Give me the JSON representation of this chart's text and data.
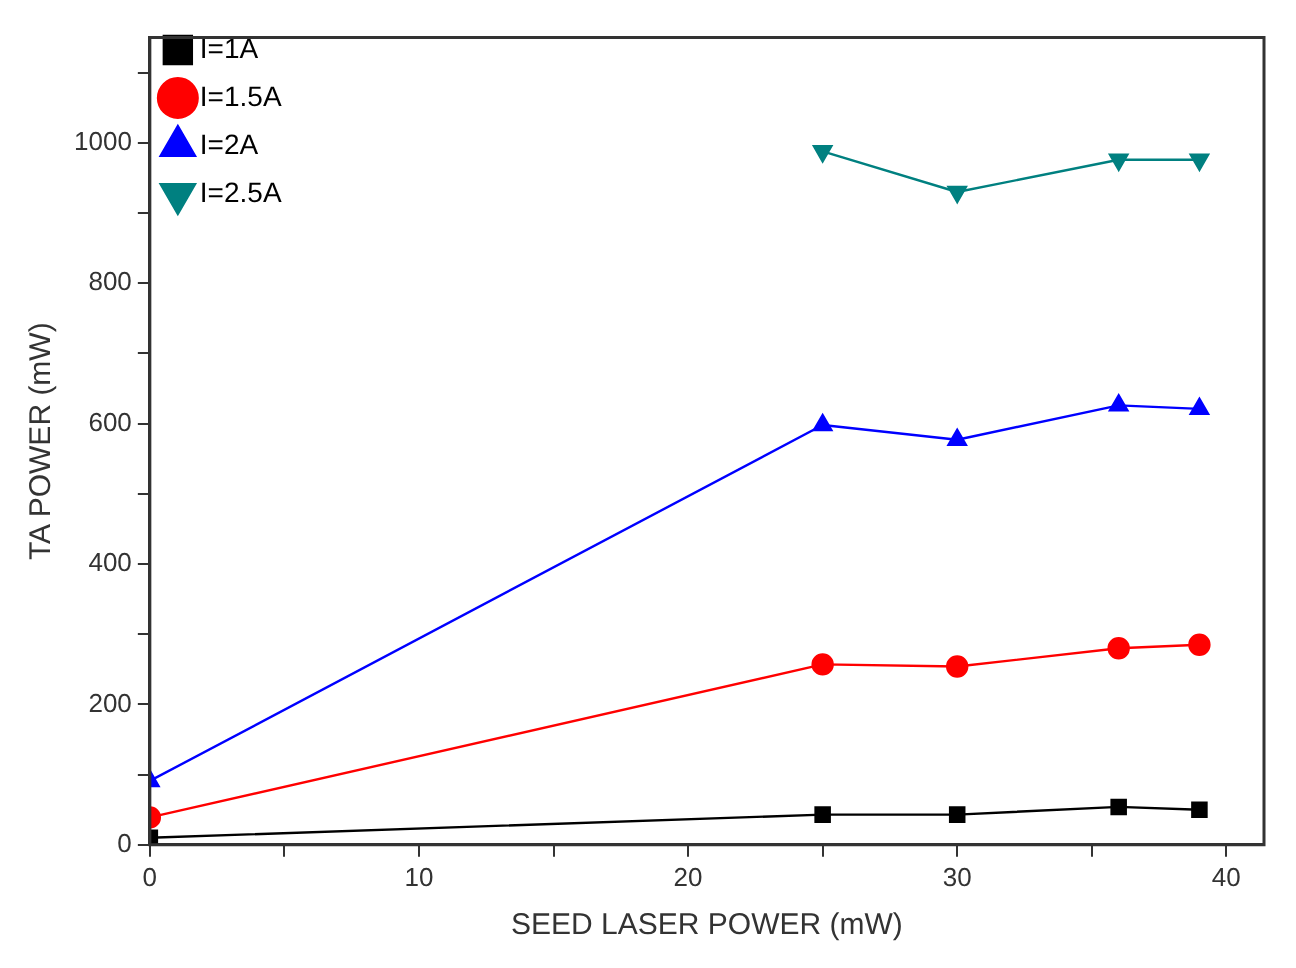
{
  "chart_data": {
    "type": "line",
    "xlabel": "SEED LASER POWER (mW)",
    "ylabel": "TA POWER (mW)",
    "x": [
      0,
      25,
      30,
      36,
      39
    ],
    "series": [
      {
        "name": "I=1A",
        "color": "#000000",
        "marker": "square",
        "values": [
          10,
          43,
          43,
          54,
          50
        ]
      },
      {
        "name": "I=1.5A",
        "color": "#ff0000",
        "marker": "circle",
        "values": [
          39,
          257,
          254,
          280,
          285
        ]
      },
      {
        "name": "I=2A",
        "color": "#0000ff",
        "marker": "triangle",
        "values": [
          91,
          598,
          577,
          626,
          621
        ]
      },
      {
        "name": "I=2.5A",
        "color": "#008080",
        "marker": "triangle_down",
        "x": [
          25,
          30,
          36,
          39
        ],
        "values": [
          988,
          930,
          976,
          976
        ]
      }
    ],
    "xlim": [
      0,
      41.4
    ],
    "ylim": [
      0,
      1150
    ],
    "xticks": [
      0,
      {
        "value": 5,
        "label": null
      },
      10,
      {
        "value": 15,
        "label": null
      },
      20,
      {
        "value": 25,
        "label": null
      },
      30,
      {
        "value": 35,
        "label": null
      },
      40
    ],
    "yticks": [
      0,
      {
        "value": 100,
        "label": null
      },
      200,
      {
        "value": 300,
        "label": null
      },
      400,
      {
        "value": 500,
        "label": null
      },
      600,
      {
        "value": 700,
        "label": null
      },
      800,
      {
        "value": 900,
        "label": null
      },
      1000,
      {
        "value": 1100,
        "label": null
      }
    ],
    "grid": false,
    "legend": "top left",
    "line_style": "solid"
  }
}
